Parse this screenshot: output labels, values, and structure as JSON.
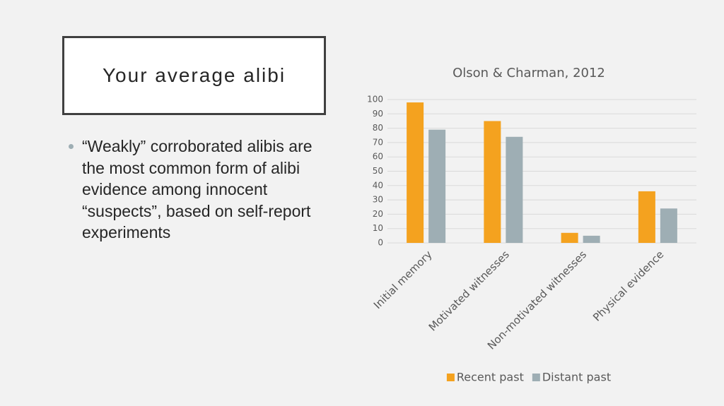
{
  "slide_title": "Your average alibi",
  "bullets": [
    "“Weakly” corroborated alibis are the most common form of alibi evidence among innocent “suspects”, based on self-report experiments"
  ],
  "chart_data": {
    "type": "bar",
    "title": "Olson & Charman, 2012",
    "categories": [
      "Initial memory",
      "Motivated witnesses",
      "Non-motivated witnesses",
      "Physical evidence"
    ],
    "series": [
      {
        "name": "Recent past",
        "color": "#f4a21f",
        "values": [
          98,
          85,
          7,
          36
        ]
      },
      {
        "name": "Distant past",
        "color": "#9eaeb4",
        "values": [
          79,
          74,
          5,
          24
        ]
      }
    ],
    "ylim": [
      0,
      100
    ],
    "yticks": [
      0,
      10,
      20,
      30,
      40,
      50,
      60,
      70,
      80,
      90,
      100
    ],
    "grid": true,
    "legend": "bottom"
  }
}
